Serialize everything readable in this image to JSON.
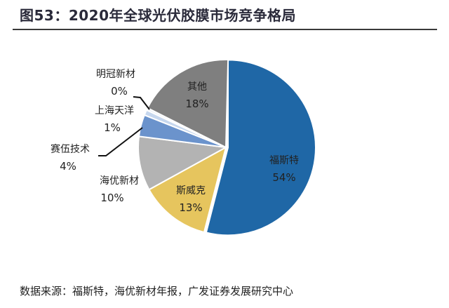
{
  "title": "图53：2020年全球光伏胶膜市场竞争格局",
  "source": "数据来源：福斯特，海优新材年报，广发证券发展研究中心",
  "chart_data": {
    "type": "pie",
    "title": "",
    "start_angle_deg": 0,
    "direction": "clockwise",
    "slices": [
      {
        "name": "福斯特",
        "value": 54,
        "label": "54%",
        "color": "#1f67a6",
        "exploded": true
      },
      {
        "name": "斯威克",
        "value": 13,
        "label": "13%",
        "color": "#e6c55e"
      },
      {
        "name": "海优新材",
        "value": 10,
        "label": "10%",
        "color": "#b3b3b3"
      },
      {
        "name": "赛伍技术",
        "value": 4,
        "label": "4%",
        "color": "#6b93cc"
      },
      {
        "name": "上海天洋",
        "value": 1,
        "label": "1%",
        "color": "#c6d7ee"
      },
      {
        "name": "明冠新材",
        "value": 0,
        "label": "0%",
        "color": "#e8eef7"
      },
      {
        "name": "其他",
        "value": 18,
        "label": "18%",
        "color": "#7f7f7f"
      }
    ]
  }
}
